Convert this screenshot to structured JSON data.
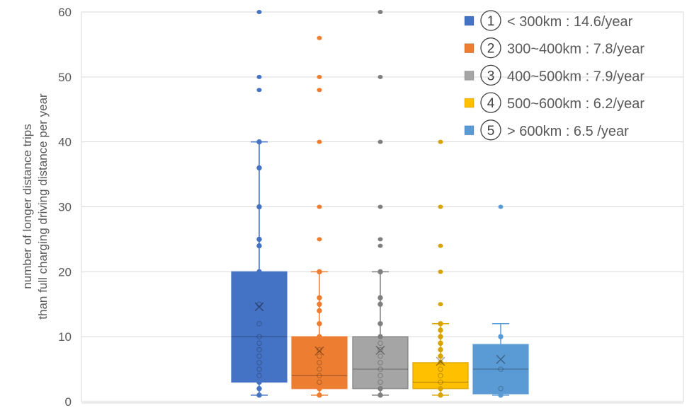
{
  "chart_data": {
    "type": "boxplot",
    "title": "",
    "xlabel": "",
    "ylabel_lines": [
      "number of longer distance trips",
      "than full charging driving distance  per year"
    ],
    "ylim": [
      0,
      60
    ],
    "yticks": [
      "0",
      "10",
      "20",
      "30",
      "40",
      "50",
      "60"
    ],
    "grid": true,
    "legend_position": "top-right",
    "series": [
      {
        "marker": "①",
        "name": "< 300km : 14.6/year",
        "color": "#4472C4",
        "min": 1,
        "q1": 3,
        "median": 10,
        "q3": 20,
        "max": 40,
        "mean": 14.6,
        "points": [
          1,
          2,
          3,
          4,
          5,
          6,
          7,
          8,
          9,
          10,
          12,
          15,
          20,
          24,
          25,
          30,
          36,
          40
        ],
        "outliers": [
          48,
          50,
          60
        ]
      },
      {
        "marker": "②",
        "name": "300~400km : 7.8/year",
        "color": "#ED7D31",
        "min": 1,
        "q1": 2,
        "median": 4,
        "q3": 10,
        "max": 20,
        "mean": 7.8,
        "points": [
          1,
          2,
          3,
          4,
          5,
          6,
          7,
          8,
          10,
          12,
          14,
          15,
          16,
          20
        ],
        "outliers": [
          25,
          30,
          40,
          48,
          50,
          56
        ]
      },
      {
        "marker": "③",
        "name": "400~500km : 7.9/year",
        "color": "#A5A5A5",
        "min": 1,
        "q1": 2,
        "median": 5,
        "q3": 10,
        "max": 20,
        "mean": 7.9,
        "points": [
          1,
          2,
          3,
          4,
          5,
          6,
          7,
          8,
          9,
          10,
          12,
          15,
          16,
          20
        ],
        "outliers": [
          24,
          25,
          30,
          40,
          50,
          60
        ]
      },
      {
        "marker": "④",
        "name": "500~600km : 6.2/year",
        "color": "#FFC000",
        "min": 1,
        "q1": 2,
        "median": 3,
        "q3": 6,
        "max": 12,
        "mean": 6.2,
        "points": [
          1,
          2,
          3,
          4,
          5,
          6,
          7,
          8,
          9,
          10,
          11,
          12
        ],
        "outliers": [
          15,
          20,
          24,
          30,
          40
        ]
      },
      {
        "marker": "⑤",
        "name": "> 600km : 6.5 /year",
        "color": "#5B9BD5",
        "min": 1,
        "q1": 1.2,
        "median": 5,
        "q3": 8.8,
        "max": 12,
        "mean": 6.5,
        "points": [
          1,
          2,
          5,
          10
        ],
        "outliers": [
          30
        ]
      }
    ]
  }
}
